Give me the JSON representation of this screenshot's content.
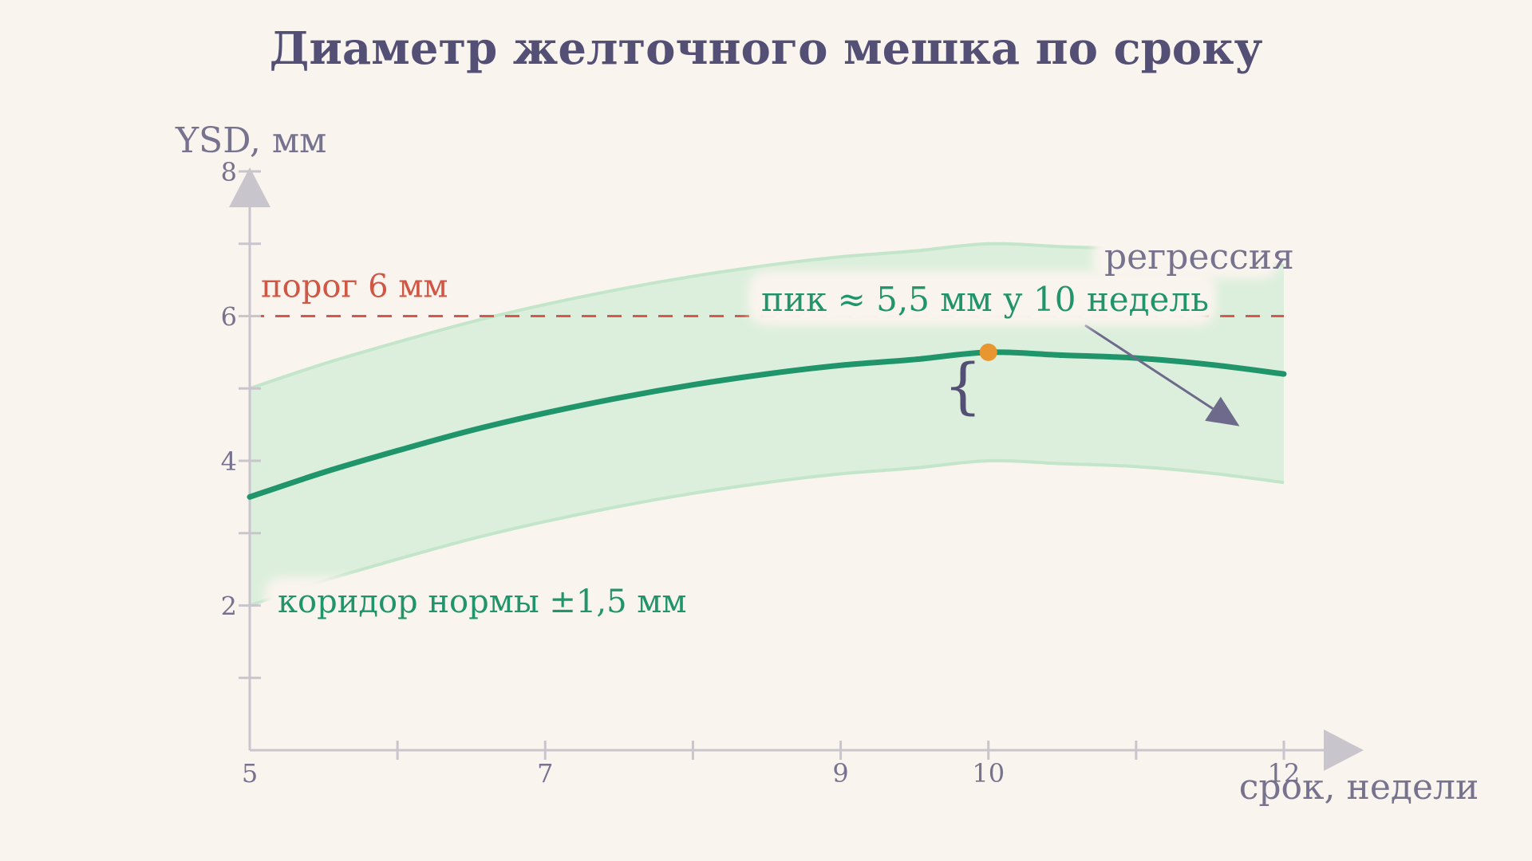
{
  "colors": {
    "background": "#faf4ee",
    "title": "#545075",
    "axis": "#c9c5cc",
    "axis_text": "#77738f",
    "curve": "#20946a",
    "band_fill": "#dcefdc",
    "band_edge": "#c3e5c9",
    "threshold": "#d9574a",
    "peak_marker": "#e8962f",
    "arrow": "#6e6a8c"
  },
  "chart_data": {
    "type": "line",
    "title": "Диаметр желточного мешка по сроку",
    "xlabel": "срок, недели",
    "ylabel": "YSD, мм",
    "xlim": [
      5,
      12
    ],
    "ylim": [
      0,
      8
    ],
    "x_ticks": [
      5,
      6,
      7,
      8,
      9,
      10,
      11,
      12
    ],
    "x_tick_labels": [
      {
        "x": 5,
        "label": "5"
      },
      {
        "x": 7,
        "label": "7"
      },
      {
        "x": 9,
        "label": "9"
      },
      {
        "x": 10,
        "label": "10"
      },
      {
        "x": 12,
        "label": "12"
      }
    ],
    "y_ticks": [
      1,
      2,
      3,
      4,
      5,
      6,
      7,
      8
    ],
    "y_tick_labels": [
      {
        "y": 2,
        "label": "2"
      },
      {
        "y": 4,
        "label": "4"
      },
      {
        "y": 6,
        "label": "6"
      },
      {
        "y": 8,
        "label": "8"
      }
    ],
    "grid": false,
    "series": [
      {
        "x": [
          5,
          5.5,
          6,
          6.5,
          7,
          7.5,
          8,
          8.5,
          9,
          9.5,
          10,
          10.5,
          11,
          11.5,
          12
        ],
        "values": [
          3.5,
          3.84,
          4.14,
          4.42,
          4.66,
          4.87,
          5.05,
          5.2,
          5.32,
          5.4,
          5.5,
          5.46,
          5.42,
          5.33,
          5.2
        ]
      }
    ],
    "band": {
      "label": "коридор нормы ±1,5 мм",
      "width": 1.5
    },
    "threshold": {
      "y": 6,
      "label": "порог 6 мм"
    },
    "peak": {
      "x": 10,
      "y": 5.5,
      "label": "пик ≈ 5,5 мм у 10 недель"
    },
    "annotations": [
      {
        "text": "регрессия",
        "arrow_to_x": 11.7,
        "arrow_to_y": 5.25
      }
    ]
  }
}
